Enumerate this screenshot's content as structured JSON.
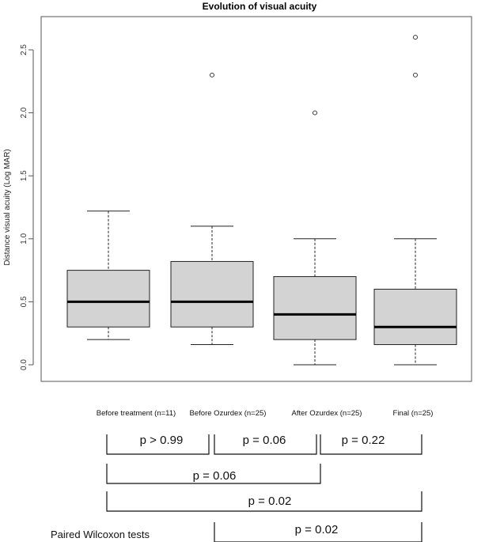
{
  "chart_data": {
    "type": "box",
    "title": "Evolution of visual acuity",
    "ylabel": "Distance visual acuity (Log MAR)",
    "xlabel": "",
    "ylim": [
      -0.05,
      2.7
    ],
    "yticks": [
      0.0,
      0.5,
      1.0,
      1.5,
      2.0,
      2.5
    ],
    "ytick_labels": [
      "0.0",
      "0.5",
      "1.0",
      "1.5",
      "2.0",
      "2.5"
    ],
    "categories": [
      "Before treatment (n=11)",
      "Before Ozurdex (n=25)",
      "After Ozurdex (n=25)",
      "Final (n=25)"
    ],
    "boxes": [
      {
        "whisker_low": 0.2,
        "q1": 0.3,
        "median": 0.5,
        "q3": 0.75,
        "whisker_high": 1.22,
        "outliers": []
      },
      {
        "whisker_low": 0.16,
        "q1": 0.3,
        "median": 0.5,
        "q3": 0.82,
        "whisker_high": 1.1,
        "outliers": [
          2.3
        ]
      },
      {
        "whisker_low": 0.0,
        "q1": 0.2,
        "median": 0.4,
        "q3": 0.7,
        "whisker_high": 1.0,
        "outliers": [
          2.0
        ]
      },
      {
        "whisker_low": 0.0,
        "q1": 0.16,
        "median": 0.3,
        "q3": 0.6,
        "whisker_high": 1.0,
        "outliers": [
          2.3,
          2.6
        ]
      }
    ],
    "grid": false,
    "legend": "none",
    "comparisons": [
      {
        "from": 0,
        "to": 1,
        "label": "p > 0.99"
      },
      {
        "from": 1,
        "to": 2,
        "label": "p = 0.06"
      },
      {
        "from": 2,
        "to": 3,
        "label": "p = 0.22"
      },
      {
        "from": 0,
        "to": 2,
        "label": "p = 0.06"
      },
      {
        "from": 0,
        "to": 3,
        "label": "p = 0.02"
      },
      {
        "from": 1,
        "to": 3,
        "label": "p = 0.02"
      }
    ],
    "note": "Paired Wilcoxon tests"
  }
}
